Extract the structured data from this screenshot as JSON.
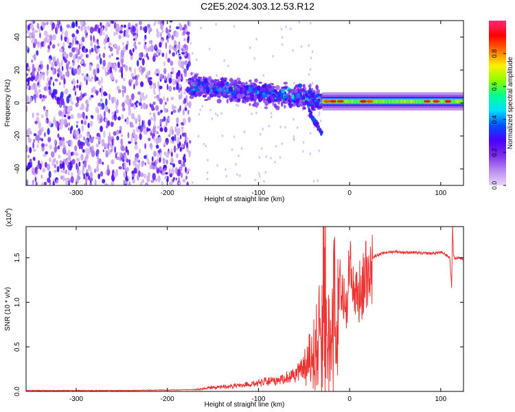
{
  "figure": {
    "title": "C2E5.2024.303.12.53.R12"
  },
  "chart_data": [
    {
      "type": "heatmap",
      "xlabel": "Height of straight line (km)",
      "ylabel": "Frequency (Hz)",
      "xlim": [
        -355,
        125
      ],
      "ylim": [
        -50,
        50
      ],
      "x_ticks": [
        -300,
        -200,
        -100,
        0,
        100
      ],
      "y_ticks": [
        -40,
        -20,
        0,
        20,
        40
      ],
      "colorbar": {
        "label": "Normalized spectral amplitude",
        "range": [
          0,
          1
        ],
        "ticks": [
          0.0,
          0.2,
          0.4,
          0.6,
          0.8
        ],
        "tick_labels": [
          "0.0",
          "0.2",
          "0.4",
          "0.6",
          "0.8"
        ],
        "colormap": [
          "#e9d5f7",
          "#b78af0",
          "#7a2de8",
          "#4c00ff",
          "#0050ff",
          "#00e0ff",
          "#00ff90",
          "#8cff00",
          "#fff000",
          "#ff7000",
          "#ff0000",
          "#ff2a78"
        ]
      },
      "regions": [
        {
          "x": [
            -355,
            -175
          ],
          "y": [
            -50,
            50
          ],
          "amplitude": 0.15,
          "description": "diffuse noise"
        },
        {
          "x": [
            -175,
            -30
          ],
          "y_center_start": 10,
          "y_center_end": 2,
          "half_width": 9,
          "amplitude": 0.3
        },
        {
          "x": [
            -30,
            125
          ],
          "y_center": 1,
          "half_width": 2,
          "amplitude": 0.55
        }
      ]
    },
    {
      "type": "line",
      "xlabel": "Height of straight line (km)",
      "ylabel": "SNR (10 * v/v)",
      "yscale_label": "(x10",
      "yscale_exp": "4",
      "yscale_close": ")",
      "xlim": [
        -355,
        125
      ],
      "ylim": [
        0,
        1.85
      ],
      "x_ticks": [
        -300,
        -200,
        -100,
        0,
        100
      ],
      "y_ticks": [
        0.0,
        0.5,
        1.0,
        1.5
      ],
      "y_tick_labels": [
        "0.0",
        "0.5",
        "1.0",
        "1.5"
      ],
      "color": "#ee3333",
      "series": [
        {
          "x": [
            -355,
            -250,
            -200,
            -170,
            -150,
            -120,
            -100,
            -80,
            -60,
            -50,
            -40,
            -33,
            -30,
            -27,
            -25,
            -22,
            -20,
            -17,
            -15,
            -12,
            -10,
            -5,
            0,
            10,
            20,
            25,
            30,
            40,
            50,
            60,
            70,
            80,
            90,
            100,
            105,
            110,
            112,
            113,
            114,
            115,
            118,
            125
          ],
          "y": [
            0.01,
            0.01,
            0.015,
            0.02,
            0.05,
            0.07,
            0.1,
            0.14,
            0.2,
            0.3,
            0.45,
            0.7,
            1.0,
            1.85,
            0.55,
            1.1,
            0.3,
            1.85,
            0.2,
            1.2,
            1.2,
            1.0,
            1.4,
            1.15,
            1.45,
            1.5,
            1.53,
            1.56,
            1.57,
            1.56,
            1.56,
            1.55,
            1.55,
            1.56,
            1.54,
            1.5,
            1.17,
            1.85,
            1.55,
            1.49,
            1.5,
            1.49
          ]
        }
      ]
    }
  ]
}
